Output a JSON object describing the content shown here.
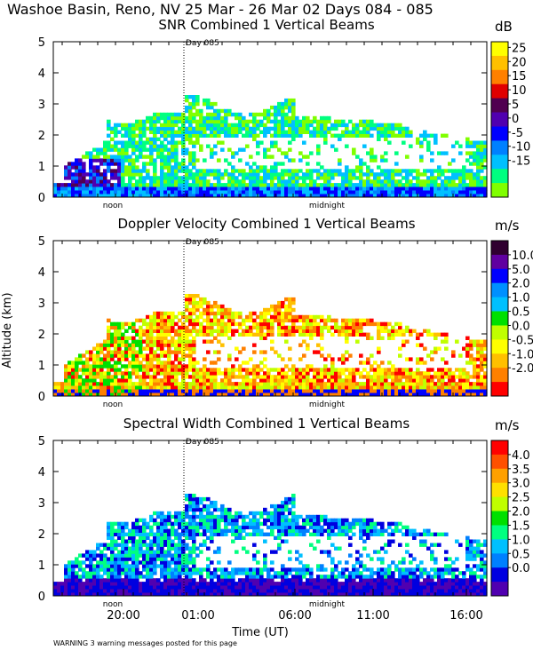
{
  "header": {
    "title": "Washoe Basin, Reno, NV  25 Mar - 26 Mar 02 Days 084 - 085"
  },
  "footer": {
    "warning": "WARNING  3 warning messages posted for this page",
    "xlabel": "Time (UT)"
  },
  "shared": {
    "day_label": "Day 085",
    "noon_label": "noon",
    "midnight_label": "midnight",
    "ylabel": "Altitude (km)",
    "yticks": [
      "0",
      "1",
      "2",
      "3",
      "4",
      "5"
    ],
    "xticks": [
      "20:00",
      "01:00",
      "06:00",
      "11:00",
      "16:00"
    ]
  },
  "chart_data": [
    {
      "type": "heatmap",
      "title": "SNR Combined 1 Vertical Beams",
      "xlabel": "Time (UT)",
      "ylabel": "Altitude (km)",
      "ylim": [
        0,
        5
      ],
      "x_tick_labels": [
        "20:00",
        "01:00",
        "06:00",
        "11:00",
        "16:00"
      ],
      "colorbar": {
        "unit": "dB",
        "labels": [
          "25",
          "20",
          "15",
          "10",
          "5",
          "0",
          "-5",
          "-10",
          "-15"
        ],
        "colors": [
          "#ffff00",
          "#ffc000",
          "#ff8000",
          "#e00000",
          "#500050",
          "#5000b0",
          "#0000ff",
          "#0080ff",
          "#00c0ff",
          "#00ff80",
          "#80ff00"
        ]
      }
    },
    {
      "type": "heatmap",
      "title": "Doppler Velocity Combined 1 Vertical Beams",
      "xlabel": "Time (UT)",
      "ylabel": "Altitude (km)",
      "ylim": [
        0,
        5
      ],
      "x_tick_labels": [
        "20:00",
        "01:00",
        "06:00",
        "11:00",
        "16:00"
      ],
      "colorbar": {
        "unit": "m/s",
        "labels": [
          "10.0",
          "5.0",
          "2.0",
          "1.0",
          "0.5",
          "0.0",
          "-0.5",
          "-1.0",
          "-2.0"
        ],
        "colors": [
          "#300030",
          "#6000a0",
          "#0000ff",
          "#0090ff",
          "#00c0ff",
          "#00e000",
          "#c0ff00",
          "#ffff00",
          "#ffc000",
          "#ff8000",
          "#ff0000"
        ]
      }
    },
    {
      "type": "heatmap",
      "title": "Spectral Width Combined 1 Vertical Beams",
      "xlabel": "Time (UT)",
      "ylabel": "Altitude (km)",
      "ylim": [
        0,
        5
      ],
      "x_tick_labels": [
        "20:00",
        "01:00",
        "06:00",
        "11:00",
        "16:00"
      ],
      "colorbar": {
        "unit": "m/s",
        "labels": [
          "4.0",
          "3.5",
          "3.0",
          "2.5",
          "2.0",
          "1.5",
          "1.0",
          "0.5",
          "0.0"
        ],
        "colors": [
          "#ff0000",
          "#ff5000",
          "#ffa000",
          "#ffe000",
          "#c0ff00",
          "#00e000",
          "#00ff80",
          "#00c0ff",
          "#0080ff",
          "#0000e0",
          "#5000b0"
        ]
      }
    }
  ]
}
